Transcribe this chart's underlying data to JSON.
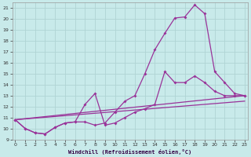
{
  "bg_color": "#c8eaea",
  "grid_color": "#b0d4d4",
  "line_color": "#993399",
  "xlim": [
    -0.5,
    23.5
  ],
  "ylim": [
    9,
    21.5
  ],
  "xticks": [
    0,
    1,
    2,
    3,
    4,
    5,
    6,
    7,
    8,
    9,
    10,
    11,
    12,
    13,
    14,
    15,
    16,
    17,
    18,
    19,
    20,
    21,
    22,
    23
  ],
  "yticks": [
    9,
    10,
    11,
    12,
    13,
    14,
    15,
    16,
    17,
    18,
    19,
    20,
    21
  ],
  "xlabel": "Windchill (Refroidissement éolien,°C)",
  "line1_x": [
    0,
    1,
    2,
    3,
    4,
    5,
    6,
    7,
    8,
    9,
    10,
    11,
    12,
    13,
    14,
    15,
    16,
    17,
    18,
    19,
    20,
    21,
    22,
    23
  ],
  "line1_y": [
    10.8,
    10.0,
    9.6,
    9.5,
    10.1,
    10.5,
    10.6,
    10.6,
    10.3,
    10.5,
    11.5,
    12.5,
    13.0,
    15.0,
    17.2,
    18.7,
    20.1,
    20.2,
    21.3,
    20.5,
    15.2,
    14.2,
    13.2,
    13.0
  ],
  "line2_x": [
    0,
    1,
    2,
    3,
    4,
    5,
    6,
    7,
    8,
    9,
    10,
    11,
    12,
    13,
    14,
    15,
    16,
    17,
    18,
    19,
    20,
    21,
    22,
    23
  ],
  "line2_y": [
    10.8,
    10.0,
    9.6,
    9.5,
    10.1,
    10.5,
    10.6,
    12.2,
    13.2,
    10.3,
    10.5,
    11.0,
    11.5,
    11.8,
    12.2,
    15.2,
    14.2,
    14.2,
    14.8,
    14.2,
    13.4,
    13.0,
    13.0,
    13.0
  ],
  "line3_x": [
    0,
    23
  ],
  "line3_y": [
    10.8,
    13.0
  ],
  "line4_x": [
    0,
    23
  ],
  "line4_y": [
    10.8,
    12.5
  ]
}
